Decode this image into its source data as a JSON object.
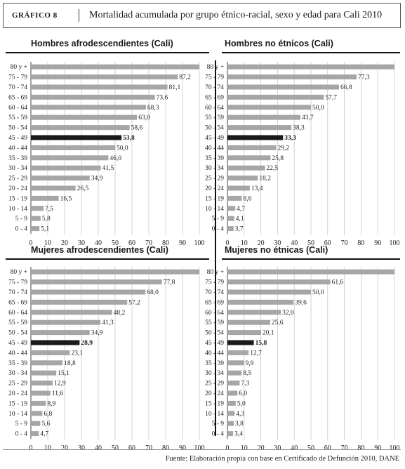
{
  "header": {
    "label": "GRÁFICO 8",
    "title": "Mortalidad acumulada por grupo étnico-racial, sexo y edad para Cali 2010"
  },
  "footnote": "Fuente: Elaboración propia con base en Certificado de Defunción 2010, DANE",
  "colors": {
    "bar": "#a6a6a6",
    "highlight": "#1a1a1a",
    "grid": "#c8c8c8"
  },
  "chart_data": [
    {
      "type": "bar",
      "title": "Hombres afrodescendientes (Cali)",
      "categories": [
        "80 y +",
        "75 - 79",
        "70 - 74",
        "65 - 69",
        "60 - 64",
        "55 - 59",
        "50 - 54",
        "45 - 49",
        "40 - 44",
        "35 - 39",
        "30 - 34",
        "25 - 29",
        "20 - 24",
        "15 - 19",
        "10 - 14",
        "5 - 9",
        "0 - 4"
      ],
      "values": [
        100,
        87.2,
        81.1,
        73.6,
        68.3,
        63.0,
        58.6,
        53.8,
        50.0,
        46.0,
        41.5,
        34.9,
        26.5,
        16.5,
        7.5,
        5.8,
        5.1
      ],
      "labels": [
        "",
        "87,2",
        "81,1",
        "73,6",
        "68,3",
        "63,0",
        "58,6",
        "53,8",
        "50,0",
        "46,0",
        "41,5",
        "34,9",
        "26,5",
        "16,5",
        "7,5",
        "5,8",
        "5,1"
      ],
      "highlight": "45 - 49",
      "xticks": [
        0,
        10,
        20,
        30,
        40,
        50,
        60,
        70,
        80,
        90,
        100
      ],
      "xlim": [
        0,
        100
      ]
    },
    {
      "type": "bar",
      "title": "Hombres no étnicos (Cali)",
      "categories": [
        "80 y +",
        "75 - 79",
        "70 - 74",
        "65 - 69",
        "60 - 64",
        "55 - 59",
        "50 - 54",
        "45 - 49",
        "40 - 44",
        "35 - 39",
        "30 - 34",
        "25 - 29",
        "20 - 24",
        "15 - 19",
        "10 - 14",
        "5 - 9",
        "0 - 4"
      ],
      "values": [
        100,
        77.3,
        66.8,
        57.7,
        50.0,
        43.7,
        38.3,
        33.3,
        29.2,
        25.8,
        22.5,
        18.2,
        13.4,
        8.6,
        4.7,
        4.1,
        3.7
      ],
      "labels": [
        "",
        "77,3",
        "66,8",
        "57,7",
        "50,0",
        "43,7",
        "38,3",
        "33,3",
        "29,2",
        "25,8",
        "22,5",
        "18,2",
        "13,4",
        "8,6",
        "4,7",
        "4,1",
        "3,7"
      ],
      "highlight": "45 - 49",
      "xticks": [
        0,
        10,
        20,
        30,
        40,
        50,
        60,
        70,
        80,
        90,
        100
      ],
      "xlim": [
        0,
        100
      ]
    },
    {
      "type": "bar",
      "title": "Mujeres afrodescendientes (Cali)",
      "categories": [
        "80 y +",
        "75 - 79",
        "70 - 74",
        "65 - 69",
        "60 - 64",
        "55 - 59",
        "50 - 54",
        "45 - 49",
        "40 - 44",
        "35 - 39",
        "30 - 34",
        "25 - 29",
        "20 - 24",
        "15 - 19",
        "10 - 14",
        "5 - 9",
        "0 - 4"
      ],
      "values": [
        100,
        77.8,
        68.0,
        57.2,
        48.2,
        41.3,
        34.9,
        28.9,
        23.1,
        18.8,
        15.1,
        12.9,
        11.6,
        8.9,
        6.8,
        5.6,
        4.7
      ],
      "labels": [
        "",
        "77,8",
        "68,0",
        "57,2",
        "48,2",
        "41,3",
        "34,9",
        "28,9",
        "23,1",
        "18,8",
        "15,1",
        "12,9",
        "11,6",
        "8,9",
        "6,8",
        "5,6",
        "4,7"
      ],
      "highlight": "45 - 49",
      "xticks": [
        0,
        10,
        20,
        30,
        40,
        50,
        60,
        70,
        80,
        90,
        100
      ],
      "xlim": [
        0,
        100
      ]
    },
    {
      "type": "bar",
      "title": "Mujeres no étnicas (Cali)",
      "categories": [
        "80 y +",
        "75 - 79",
        "70 - 74",
        "65 - 69",
        "60 - 64",
        "55 - 59",
        "50 - 54",
        "45 - 49",
        "40 - 44",
        "35 - 39",
        "30 - 34",
        "25 - 29",
        "20 - 24",
        "15 - 19",
        "10 - 14",
        "5 - 9",
        "0 - 4"
      ],
      "values": [
        100,
        61.6,
        50.0,
        39.6,
        32.0,
        25.6,
        20.1,
        15.8,
        12.7,
        9.9,
        8.5,
        7.3,
        6.0,
        5.0,
        4.3,
        3.8,
        3.4
      ],
      "labels": [
        "",
        "61,6",
        "50,0",
        "39,6",
        "32,0",
        "25,6",
        "20,1",
        "15,8",
        "12,7",
        "9,9",
        "8,5",
        "7,3",
        "6,0",
        "5,0",
        "4,3",
        "3,8",
        "3,4"
      ],
      "highlight": "45 - 49",
      "xticks": [
        0,
        10,
        20,
        30,
        40,
        50,
        60,
        70,
        80,
        90,
        100
      ],
      "xlim": [
        0,
        100
      ]
    }
  ]
}
